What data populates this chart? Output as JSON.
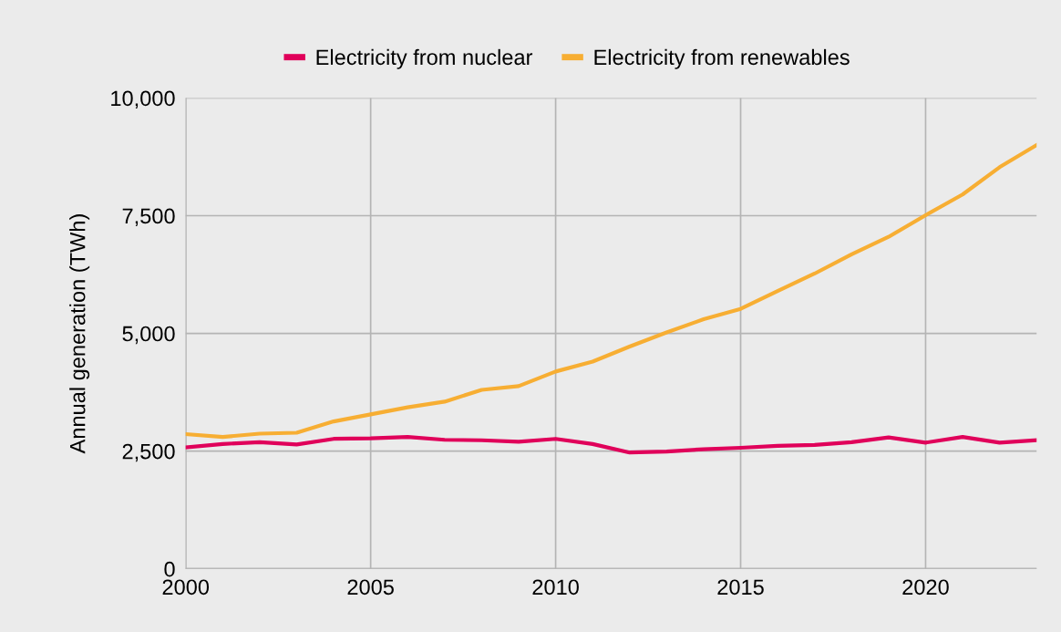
{
  "chart_data": {
    "type": "line",
    "ylabel": "Annual generation (TWh)",
    "x": [
      2000,
      2001,
      2002,
      2003,
      2004,
      2005,
      2006,
      2007,
      2008,
      2009,
      2010,
      2011,
      2012,
      2013,
      2014,
      2015,
      2016,
      2017,
      2018,
      2019,
      2020,
      2021,
      2022,
      2023
    ],
    "series": [
      {
        "name": "Electricity from nuclear",
        "color": "#e0005a",
        "values": [
          2580,
          2650,
          2690,
          2640,
          2760,
          2770,
          2800,
          2740,
          2730,
          2700,
          2760,
          2650,
          2470,
          2490,
          2540,
          2570,
          2610,
          2630,
          2690,
          2790,
          2680,
          2800,
          2680,
          2730
        ]
      },
      {
        "name": "Electricity from renewables",
        "color": "#f7ae33",
        "values": [
          2860,
          2800,
          2870,
          2890,
          3130,
          3280,
          3430,
          3550,
          3800,
          3880,
          4190,
          4400,
          4720,
          5020,
          5300,
          5520,
          5900,
          6270,
          6680,
          7050,
          7510,
          7950,
          8530,
          9000
        ]
      }
    ],
    "xlim": [
      2000,
      2023
    ],
    "xticks": [
      2000,
      2005,
      2010,
      2015,
      2020
    ],
    "ylim": [
      0,
      10000
    ],
    "yticks": [
      0,
      {
        "value": 2500,
        "label": "2,500"
      },
      {
        "value": 5000,
        "label": "5,000"
      },
      {
        "value": 7500,
        "label": "7,500"
      },
      {
        "value": 10000,
        "label": "10,000"
      }
    ],
    "grid": true,
    "legend": "top",
    "marker": "none",
    "line_style": "solid"
  }
}
